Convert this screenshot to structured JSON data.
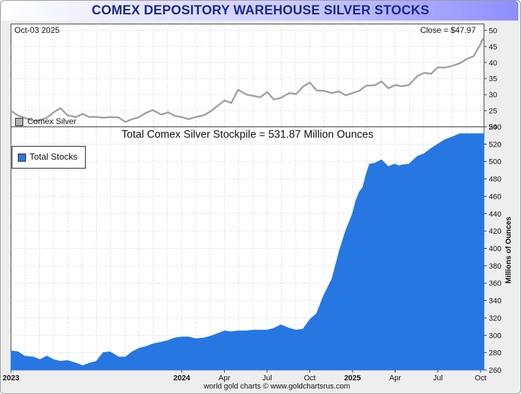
{
  "header": {
    "title": "COMEX DEPOSITORY WAREHOUSE SILVER STOCKS",
    "date": "Oct-03  2025",
    "close": "Close = $47.97",
    "stockpile_title": "Total Comex Silver Stockpile = 531.87 Million Ounces",
    "credit": "world gold charts © www.goldchartsrus.com"
  },
  "colors": {
    "stocks_fill": "#2777e3",
    "silver_line": "#a0a0a0",
    "title_text": "#1c2a8c"
  },
  "chart_data": [
    {
      "type": "line",
      "title": "Comex Silver",
      "legend": "Comex Silver",
      "ylim": [
        20,
        52
      ],
      "y_ticks": [
        20,
        25,
        30,
        35,
        40,
        45,
        50
      ],
      "x_range": [
        2023.0,
        2025.77
      ],
      "x": [
        2023.0,
        2023.04,
        2023.08,
        2023.13,
        2023.17,
        2023.21,
        2023.25,
        2023.29,
        2023.33,
        2023.38,
        2023.42,
        2023.46,
        2023.5,
        2023.54,
        2023.58,
        2023.63,
        2023.67,
        2023.71,
        2023.75,
        2023.79,
        2023.83,
        2023.88,
        2023.92,
        2023.96,
        2024.0,
        2024.04,
        2024.08,
        2024.13,
        2024.17,
        2024.21,
        2024.25,
        2024.29,
        2024.33,
        2024.38,
        2024.42,
        2024.46,
        2024.5,
        2024.54,
        2024.58,
        2024.63,
        2024.67,
        2024.71,
        2024.75,
        2024.79,
        2024.83,
        2024.88,
        2024.92,
        2024.96,
        2025.0,
        2025.04,
        2025.08,
        2025.13,
        2025.17,
        2025.21,
        2025.25,
        2025.29,
        2025.33,
        2025.38,
        2025.42,
        2025.46,
        2025.5,
        2025.54,
        2025.58,
        2025.63,
        2025.67,
        2025.71,
        2025.75,
        2025.77
      ],
      "values": [
        25.0,
        23.5,
        22.8,
        21.8,
        22.1,
        22.8,
        24.5,
        25.8,
        23.6,
        23.0,
        24.0,
        23.0,
        23.1,
        22.8,
        23.0,
        22.9,
        21.5,
        22.4,
        23.0,
        24.3,
        25.2,
        23.8,
        24.5,
        23.4,
        23.0,
        22.4,
        23.0,
        23.6,
        24.8,
        26.5,
        28.2,
        27.4,
        31.5,
        30.0,
        29.6,
        29.2,
        30.8,
        28.5,
        29.0,
        30.5,
        30.2,
        32.5,
        33.8,
        31.3,
        31.2,
        30.5,
        31.0,
        29.8,
        30.5,
        31.2,
        32.8,
        32.9,
        34.1,
        32.0,
        33.0,
        32.6,
        33.0,
        35.8,
        36.8,
        36.5,
        38.5,
        38.4,
        38.9,
        39.8,
        41.1,
        42.0,
        45.8,
        48.0
      ]
    },
    {
      "type": "area",
      "title": "Total Comex Silver Stockpile",
      "legend": "Total Stocks",
      "ylabel": "Millions of Ounces",
      "ylim": [
        260,
        540
      ],
      "y_ticks": [
        260,
        280,
        300,
        320,
        340,
        360,
        380,
        400,
        420,
        440,
        460,
        480,
        500,
        520,
        540
      ],
      "x_tick_labels": [
        "2023",
        "2024",
        "Apr",
        "Jul",
        "Oct",
        "2025",
        "Apr",
        "Jul",
        "Oct"
      ],
      "x_tick_values": [
        2023.0,
        2024.0,
        2024.25,
        2024.5,
        2024.75,
        2025.0,
        2025.25,
        2025.5,
        2025.75
      ],
      "x_range": [
        2023.0,
        2025.77
      ],
      "x": [
        2023.0,
        2023.04,
        2023.08,
        2023.13,
        2023.17,
        2023.21,
        2023.25,
        2023.29,
        2023.33,
        2023.38,
        2023.42,
        2023.46,
        2023.5,
        2023.54,
        2023.58,
        2023.63,
        2023.67,
        2023.71,
        2023.75,
        2023.79,
        2023.83,
        2023.88,
        2023.92,
        2023.96,
        2024.0,
        2024.04,
        2024.08,
        2024.13,
        2024.17,
        2024.21,
        2024.25,
        2024.29,
        2024.33,
        2024.38,
        2024.42,
        2024.46,
        2024.5,
        2024.54,
        2024.58,
        2024.63,
        2024.67,
        2024.71,
        2024.75,
        2024.79,
        2024.83,
        2024.88,
        2024.92,
        2024.96,
        2025.0,
        2025.02,
        2025.04,
        2025.06,
        2025.08,
        2025.1,
        2025.13,
        2025.15,
        2025.17,
        2025.19,
        2025.21,
        2025.23,
        2025.25,
        2025.27,
        2025.29,
        2025.33,
        2025.38,
        2025.42,
        2025.46,
        2025.5,
        2025.54,
        2025.58,
        2025.63,
        2025.67,
        2025.71,
        2025.73,
        2025.75,
        2025.77
      ],
      "values": [
        282,
        281,
        276,
        275,
        272,
        276,
        272,
        270,
        271,
        268,
        265,
        268,
        270,
        280,
        281,
        275,
        275,
        281,
        285,
        287,
        290,
        292,
        294,
        297,
        298,
        298,
        296,
        297,
        299,
        302,
        305,
        304,
        305,
        305,
        306,
        306,
        306,
        308,
        312,
        308,
        306,
        307,
        318,
        325,
        345,
        365,
        395,
        420,
        440,
        455,
        465,
        470,
        485,
        497,
        498,
        500,
        502,
        498,
        494,
        496,
        497,
        495,
        496,
        497,
        506,
        509,
        515,
        520,
        525,
        528,
        532,
        532,
        532,
        532,
        532,
        532
      ]
    }
  ]
}
